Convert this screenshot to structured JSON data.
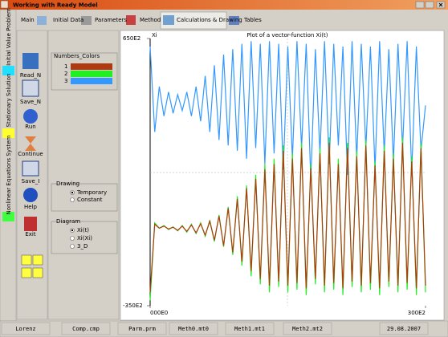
{
  "window": {
    "title": "Working with Ready Model"
  },
  "tabs": [
    "Main",
    "Initial Data",
    "Parameters",
    "Method",
    "Calculations & Drawing",
    "Tables"
  ],
  "side_tabs": [
    "Initial Value Problem",
    "Stationary Solution",
    "Nonlinear Equations System"
  ],
  "toolbar": [
    "Read_N",
    "Save_N",
    "Run",
    "Continue",
    "Save_I",
    "Help",
    "Exit"
  ],
  "panel": {
    "numbers_colors": {
      "title": "Numbers_Colors"
    },
    "drawing": {
      "title": "Drawing",
      "options": [
        "Temporary",
        "Constant"
      ],
      "selected": 0
    },
    "diagram": {
      "title": "Diagram",
      "options": [
        "Xi(t)",
        "Xi(Xi)",
        "3_D"
      ],
      "selected": 0
    }
  },
  "chart_data": {
    "type": "line",
    "title": "Plot of a vector-function Xi(t)",
    "y_label": "Xi",
    "xlim": [
      0,
      30000
    ],
    "ylim": [
      -35000,
      65000
    ],
    "xticks": [
      {
        "value": 0,
        "label": "000E0"
      },
      {
        "value": 30000,
        "label": "300E2"
      }
    ],
    "yticks": [
      {
        "value": -35000,
        "label": "-350E2"
      },
      {
        "value": 65000,
        "label": "650E2"
      }
    ],
    "x": [
      0,
      500,
      1000,
      1500,
      2000,
      2500,
      3000,
      3500,
      4000,
      4500,
      5000,
      5500,
      6000,
      6500,
      7000,
      7500,
      8000,
      8500,
      9000,
      9500,
      10000,
      10500,
      11000,
      11500,
      12000,
      12500,
      13000,
      13500,
      14000,
      14500,
      15000,
      15500,
      16000,
      16500,
      17000,
      17500,
      18000,
      18500,
      19000,
      19500,
      20000,
      20500,
      21000,
      21500,
      22000,
      22500,
      23000,
      23500,
      24000,
      24500,
      25000,
      25500,
      26000,
      26500,
      27000,
      27500,
      28000,
      28500,
      29000,
      29500,
      30000
    ],
    "series": [
      {
        "name": "1",
        "color": "#b03a10",
        "values": [
          -30000,
          -4500,
          -6000,
          -5200,
          -6300,
          -5600,
          -6800,
          -5200,
          -7200,
          -4800,
          -7700,
          -4300,
          -8600,
          -3400,
          -10500,
          -1500,
          -12500,
          1500,
          -15000,
          5000,
          -18500,
          9000,
          -22000,
          12500,
          -25000,
          16000,
          -27500,
          18000,
          -26000,
          23000,
          -27500,
          20000,
          -26500,
          24000,
          -28500,
          16500,
          -25000,
          22000,
          -27500,
          26000,
          -26500,
          18000,
          -28500,
          24000,
          -26000,
          21000,
          -27500,
          25000,
          -26500,
          17500,
          -28500,
          23000,
          -26000,
          20000,
          -27500,
          26000,
          -26500,
          19000,
          -28500,
          24000,
          -27500
        ]
      },
      {
        "name": "2",
        "color": "#22ee22",
        "values": [
          -33000,
          -4000,
          -6000,
          -5000,
          -6500,
          -5500,
          -7000,
          -5000,
          -7500,
          -4500,
          -8000,
          -4000,
          -9000,
          -3000,
          -11000,
          -1000,
          -13000,
          2000,
          -16000,
          6000,
          -20000,
          10000,
          -24000,
          14000,
          -27000,
          18000,
          -30000,
          20000,
          -28000,
          25000,
          -30000,
          22000,
          -29000,
          26000,
          -31000,
          18000,
          -27000,
          24000,
          -30000,
          28000,
          -29000,
          20000,
          -31000,
          26000,
          -28000,
          23000,
          -30000,
          27000,
          -29000,
          19000,
          -31000,
          25000,
          -28000,
          22000,
          -30000,
          28000,
          -29000,
          21000,
          -31000,
          26000,
          -30000
        ]
      },
      {
        "name": "3",
        "color": "#3399ff",
        "values": [
          62000,
          30000,
          47000,
          36000,
          45000,
          37000,
          44000,
          38000,
          45000,
          36000,
          47000,
          34000,
          51000,
          30000,
          55000,
          27000,
          59000,
          25000,
          61000,
          23000,
          63000,
          20000,
          64000,
          24000,
          63000,
          18000,
          64000,
          22000,
          63000,
          16000,
          62000,
          20000,
          64000,
          24000,
          63000,
          12000,
          61000,
          22000,
          64000,
          18000,
          63000,
          25000,
          62000,
          14000,
          64000,
          20000,
          63000,
          24000,
          62000,
          16000,
          64000,
          22000,
          61000,
          19000,
          63000,
          24000,
          64000,
          15000,
          62000,
          23000,
          40000
        ]
      }
    ]
  },
  "status": [
    "Lorenz",
    "Comp.cmp",
    "Parm.prm",
    "Meth0.mt0",
    "Meth1.mt1",
    "Meth2.mt2",
    "29.08.2007"
  ]
}
